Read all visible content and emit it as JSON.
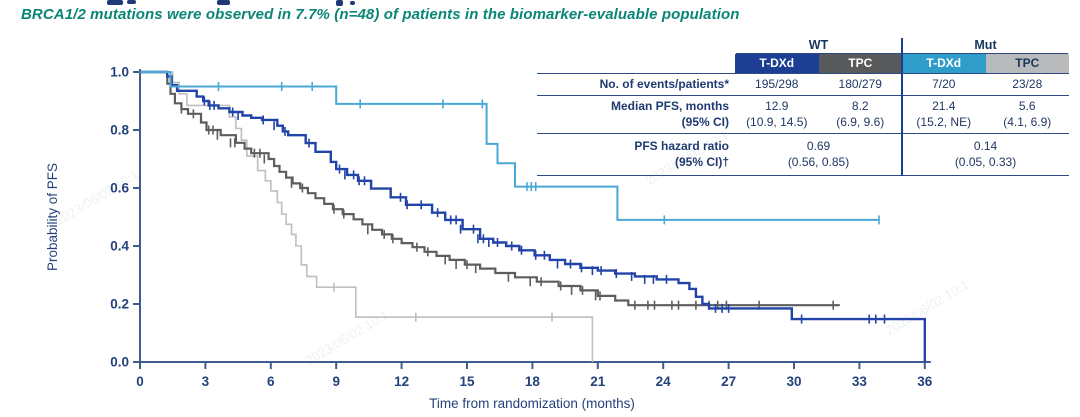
{
  "title": {
    "gene": "BRCA1/2",
    "rest": " mutations were observed in 7.7% (n=48) of patients in the biomarker-evaluable population"
  },
  "watermark": {
    "text": "2023/06/02 10:1"
  },
  "table": {
    "group_headers": [
      "WT",
      "Mut"
    ],
    "col_headers": [
      {
        "label": "T-DXd",
        "bg": "#1c3f94",
        "fg": "#ffffff"
      },
      {
        "label": "TPC",
        "bg": "#58595b",
        "fg": "#ffffff"
      },
      {
        "label": "T-DXd",
        "bg": "#2f9dc9",
        "fg": "#ffffff"
      },
      {
        "label": "TPC",
        "bg": "#b9babc",
        "fg": "#17365d"
      }
    ],
    "rows": [
      {
        "label": "No. of events/patients*",
        "values": [
          "195/298",
          "180/279",
          "7/20",
          "23/28"
        ]
      },
      {
        "label": "Median PFS, months",
        "label2": "(95% CI)",
        "values": [
          "12.9",
          "8.2",
          "21.4",
          "5.6"
        ],
        "values2": [
          "(10.9, 14.5)",
          "(6.9, 9.6)",
          "(15.2, NE)",
          "(4.1, 6.9)"
        ]
      },
      {
        "label": "PFS hazard ratio",
        "label2": "(95% CI)†",
        "span_values": [
          "0.69",
          "0.14"
        ],
        "span_values2": [
          "(0.56, 0.85)",
          "(0.05, 0.33)"
        ]
      }
    ]
  },
  "chart_data": {
    "type": "line",
    "subtype": "kaplan-meier-step",
    "xlabel": "Time from randomization (months)",
    "ylabel": "Probability of PFS",
    "xlim": [
      0,
      36
    ],
    "ylim": [
      0.0,
      1.0
    ],
    "xticks": [
      0,
      3,
      6,
      9,
      12,
      15,
      18,
      21,
      24,
      27,
      30,
      33,
      36
    ],
    "yticks": [
      {
        "v": 1.0,
        "label": "1.0"
      },
      {
        "v": 0.8,
        "label": "0.8"
      },
      {
        "v": 0.6,
        "label": "0.6"
      },
      {
        "v": 0.4,
        "label": "0.4"
      },
      {
        "v": 0.2,
        "label": "0.2"
      },
      {
        "v": 0.0,
        "label": "0.0"
      }
    ],
    "axis_color": "#3f5c8f",
    "text_color": "#24427c",
    "series": [
      {
        "name": "Mut TPC",
        "color": "#bfbfbf",
        "width": 1.6,
        "drop_to_zero": true,
        "steps": [
          [
            0,
            1.0
          ],
          [
            1.5,
            0.964
          ],
          [
            1.8,
            0.925
          ],
          [
            2.15,
            0.885
          ],
          [
            4.1,
            0.845
          ],
          [
            4.4,
            0.805
          ],
          [
            4.65,
            0.765
          ],
          [
            4.9,
            0.71
          ],
          [
            5.4,
            0.66
          ],
          [
            5.75,
            0.625
          ],
          [
            6.0,
            0.59
          ],
          [
            6.3,
            0.55
          ],
          [
            6.5,
            0.51
          ],
          [
            6.7,
            0.475
          ],
          [
            6.95,
            0.44
          ],
          [
            7.15,
            0.4
          ],
          [
            7.4,
            0.335
          ],
          [
            7.65,
            0.295
          ],
          [
            8.1,
            0.258
          ],
          [
            9.9,
            0.155
          ],
          [
            20.75,
            0.155
          ]
        ],
        "censors": [
          [
            8.9,
            0.258
          ],
          [
            12.65,
            0.155
          ],
          [
            18.9,
            0.155
          ]
        ]
      },
      {
        "name": "WT TPC",
        "color": "#5d5d5d",
        "width": 2.2,
        "drop_to_zero": false,
        "steps": [
          [
            0,
            1.0
          ],
          [
            1.25,
            0.96
          ],
          [
            1.4,
            0.925
          ],
          [
            1.6,
            0.892
          ],
          [
            1.9,
            0.872
          ],
          [
            2.2,
            0.856
          ],
          [
            2.8,
            0.826
          ],
          [
            3.05,
            0.8
          ],
          [
            3.7,
            0.782
          ],
          [
            4.4,
            0.756
          ],
          [
            4.8,
            0.736
          ],
          [
            5.1,
            0.72
          ],
          [
            5.9,
            0.7
          ],
          [
            6.15,
            0.676
          ],
          [
            6.4,
            0.656
          ],
          [
            6.7,
            0.636
          ],
          [
            7.0,
            0.616
          ],
          [
            7.35,
            0.6
          ],
          [
            7.7,
            0.582
          ],
          [
            8.05,
            0.565
          ],
          [
            8.45,
            0.545
          ],
          [
            8.85,
            0.527
          ],
          [
            9.3,
            0.51
          ],
          [
            9.8,
            0.492
          ],
          [
            10.2,
            0.475
          ],
          [
            10.65,
            0.456
          ],
          [
            11.1,
            0.44
          ],
          [
            11.55,
            0.425
          ],
          [
            12.0,
            0.41
          ],
          [
            12.5,
            0.396
          ],
          [
            13.05,
            0.38
          ],
          [
            13.6,
            0.366
          ],
          [
            14.2,
            0.352
          ],
          [
            14.9,
            0.336
          ],
          [
            15.6,
            0.322
          ],
          [
            16.3,
            0.307
          ],
          [
            17.2,
            0.292
          ],
          [
            18.2,
            0.277
          ],
          [
            19.2,
            0.262
          ],
          [
            20.2,
            0.247
          ],
          [
            21.0,
            0.228
          ],
          [
            21.8,
            0.212
          ],
          [
            22.4,
            0.196
          ],
          [
            32.1,
            0.196
          ]
        ],
        "censors": [
          [
            1.9,
            0.872
          ],
          [
            2.45,
            0.856
          ],
          [
            3.15,
            0.8
          ],
          [
            3.35,
            0.8
          ],
          [
            3.55,
            0.782
          ],
          [
            4.15,
            0.756
          ],
          [
            4.35,
            0.756
          ],
          [
            5.25,
            0.72
          ],
          [
            5.5,
            0.72
          ],
          [
            5.7,
            0.7
          ],
          [
            6.95,
            0.616
          ],
          [
            7.45,
            0.6
          ],
          [
            8.9,
            0.527
          ],
          [
            9.35,
            0.51
          ],
          [
            10.45,
            0.456
          ],
          [
            11.2,
            0.44
          ],
          [
            11.6,
            0.425
          ],
          [
            12.7,
            0.396
          ],
          [
            13.2,
            0.38
          ],
          [
            14.0,
            0.352
          ],
          [
            14.5,
            0.336
          ],
          [
            15.0,
            0.336
          ],
          [
            15.4,
            0.322
          ],
          [
            16.9,
            0.292
          ],
          [
            17.9,
            0.277
          ],
          [
            18.4,
            0.277
          ],
          [
            19.3,
            0.262
          ],
          [
            19.8,
            0.247
          ],
          [
            20.3,
            0.247
          ],
          [
            20.9,
            0.228
          ],
          [
            21.1,
            0.228
          ],
          [
            22.7,
            0.196
          ],
          [
            23.3,
            0.196
          ],
          [
            23.6,
            0.196
          ],
          [
            24.4,
            0.196
          ],
          [
            24.7,
            0.196
          ],
          [
            25.5,
            0.196
          ],
          [
            26.1,
            0.196
          ],
          [
            26.5,
            0.196
          ],
          [
            26.9,
            0.196
          ],
          [
            28.4,
            0.196
          ],
          [
            31.8,
            0.196
          ]
        ]
      },
      {
        "name": "WT T-DXd",
        "color": "#2244a8",
        "width": 2.4,
        "drop_to_zero": true,
        "steps": [
          [
            0,
            1.0
          ],
          [
            1.25,
            0.985
          ],
          [
            1.45,
            0.955
          ],
          [
            1.7,
            0.935
          ],
          [
            2.6,
            0.915
          ],
          [
            2.9,
            0.9
          ],
          [
            3.15,
            0.885
          ],
          [
            3.6,
            0.875
          ],
          [
            4.1,
            0.862
          ],
          [
            4.7,
            0.85
          ],
          [
            5.1,
            0.842
          ],
          [
            5.6,
            0.835
          ],
          [
            6.3,
            0.815
          ],
          [
            6.55,
            0.795
          ],
          [
            6.8,
            0.782
          ],
          [
            7.6,
            0.755
          ],
          [
            8.05,
            0.725
          ],
          [
            8.75,
            0.69
          ],
          [
            9.0,
            0.665
          ],
          [
            9.5,
            0.645
          ],
          [
            10.0,
            0.625
          ],
          [
            10.6,
            0.598
          ],
          [
            11.5,
            0.568
          ],
          [
            12.2,
            0.542
          ],
          [
            13.4,
            0.515
          ],
          [
            14.0,
            0.49
          ],
          [
            14.8,
            0.458
          ],
          [
            15.6,
            0.425
          ],
          [
            16.2,
            0.412
          ],
          [
            16.8,
            0.4
          ],
          [
            17.4,
            0.385
          ],
          [
            18.1,
            0.368
          ],
          [
            18.8,
            0.352
          ],
          [
            19.5,
            0.338
          ],
          [
            20.2,
            0.325
          ],
          [
            21.0,
            0.315
          ],
          [
            21.8,
            0.305
          ],
          [
            22.7,
            0.295
          ],
          [
            23.7,
            0.285
          ],
          [
            24.7,
            0.272
          ],
          [
            25.2,
            0.252
          ],
          [
            25.5,
            0.225
          ],
          [
            25.8,
            0.2
          ],
          [
            26.1,
            0.185
          ],
          [
            29.9,
            0.148
          ],
          [
            36.0,
            0.148
          ]
        ],
        "censors": [
          [
            2.95,
            0.9
          ],
          [
            3.2,
            0.885
          ],
          [
            3.4,
            0.885
          ],
          [
            4.25,
            0.862
          ],
          [
            4.5,
            0.85
          ],
          [
            5.65,
            0.835
          ],
          [
            6.15,
            0.815
          ],
          [
            6.65,
            0.795
          ],
          [
            7.75,
            0.755
          ],
          [
            9.15,
            0.665
          ],
          [
            9.4,
            0.645
          ],
          [
            9.8,
            0.645
          ],
          [
            10.05,
            0.625
          ],
          [
            10.3,
            0.625
          ],
          [
            11.95,
            0.568
          ],
          [
            12.25,
            0.542
          ],
          [
            12.9,
            0.542
          ],
          [
            13.65,
            0.515
          ],
          [
            14.25,
            0.49
          ],
          [
            14.5,
            0.49
          ],
          [
            14.7,
            0.458
          ],
          [
            15.3,
            0.458
          ],
          [
            15.5,
            0.425
          ],
          [
            15.75,
            0.425
          ],
          [
            16.0,
            0.412
          ],
          [
            16.4,
            0.412
          ],
          [
            17.05,
            0.4
          ],
          [
            17.5,
            0.385
          ],
          [
            18.15,
            0.368
          ],
          [
            18.55,
            0.368
          ],
          [
            19.15,
            0.338
          ],
          [
            19.75,
            0.338
          ],
          [
            20.25,
            0.325
          ],
          [
            20.75,
            0.315
          ],
          [
            21.15,
            0.315
          ],
          [
            21.85,
            0.305
          ],
          [
            22.55,
            0.295
          ],
          [
            23.15,
            0.285
          ],
          [
            23.55,
            0.285
          ],
          [
            24.15,
            0.285
          ],
          [
            26.4,
            0.185
          ],
          [
            26.7,
            0.185
          ],
          [
            27.0,
            0.185
          ],
          [
            30.35,
            0.148
          ],
          [
            33.45,
            0.148
          ],
          [
            33.75,
            0.148
          ],
          [
            34.15,
            0.148
          ]
        ]
      },
      {
        "name": "Mut T-DXd",
        "color": "#4aa8d6",
        "width": 2.0,
        "drop_to_zero": false,
        "steps": [
          [
            0,
            1.0
          ],
          [
            1.4,
            0.95
          ],
          [
            9.0,
            0.89
          ],
          [
            15.9,
            0.752
          ],
          [
            16.4,
            0.685
          ],
          [
            17.2,
            0.605
          ],
          [
            21.9,
            0.49
          ],
          [
            33.9,
            0.49
          ]
        ],
        "censors": [
          [
            3.6,
            0.95
          ],
          [
            6.5,
            0.95
          ],
          [
            7.9,
            0.95
          ],
          [
            10.1,
            0.89
          ],
          [
            13.9,
            0.89
          ],
          [
            15.7,
            0.89
          ],
          [
            17.75,
            0.605
          ],
          [
            17.95,
            0.605
          ],
          [
            18.15,
            0.605
          ],
          [
            24.05,
            0.49
          ],
          [
            33.9,
            0.49
          ]
        ]
      }
    ]
  }
}
